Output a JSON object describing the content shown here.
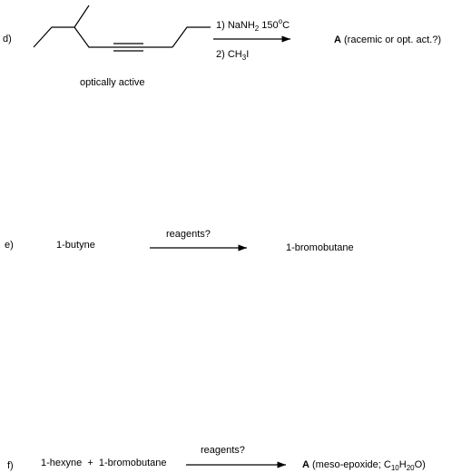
{
  "d": {
    "label": "d)",
    "step1": {
      "text": "1) NaNH",
      "sub": "2",
      "rest": " 150",
      "sup": "o",
      "end": "C"
    },
    "step2": {
      "text": "2) CH",
      "sub": "3",
      "end": "I"
    },
    "product": {
      "bold": "A",
      "text": " (racemic or opt. act.?)"
    },
    "note": "optically active"
  },
  "e": {
    "label": "e)",
    "reactant": "1-butyne",
    "reagents": "reagents?",
    "product": "1-bromobutane"
  },
  "f": {
    "label": "f)",
    "reactants": "1-hexyne  +  1-bromobutane",
    "reagents": "reagents?",
    "product": {
      "bold": "A",
      "text": " (meso-epoxide; C",
      "sub1": "10",
      "h": "H",
      "sub2": "20",
      "end": "O)"
    }
  }
}
